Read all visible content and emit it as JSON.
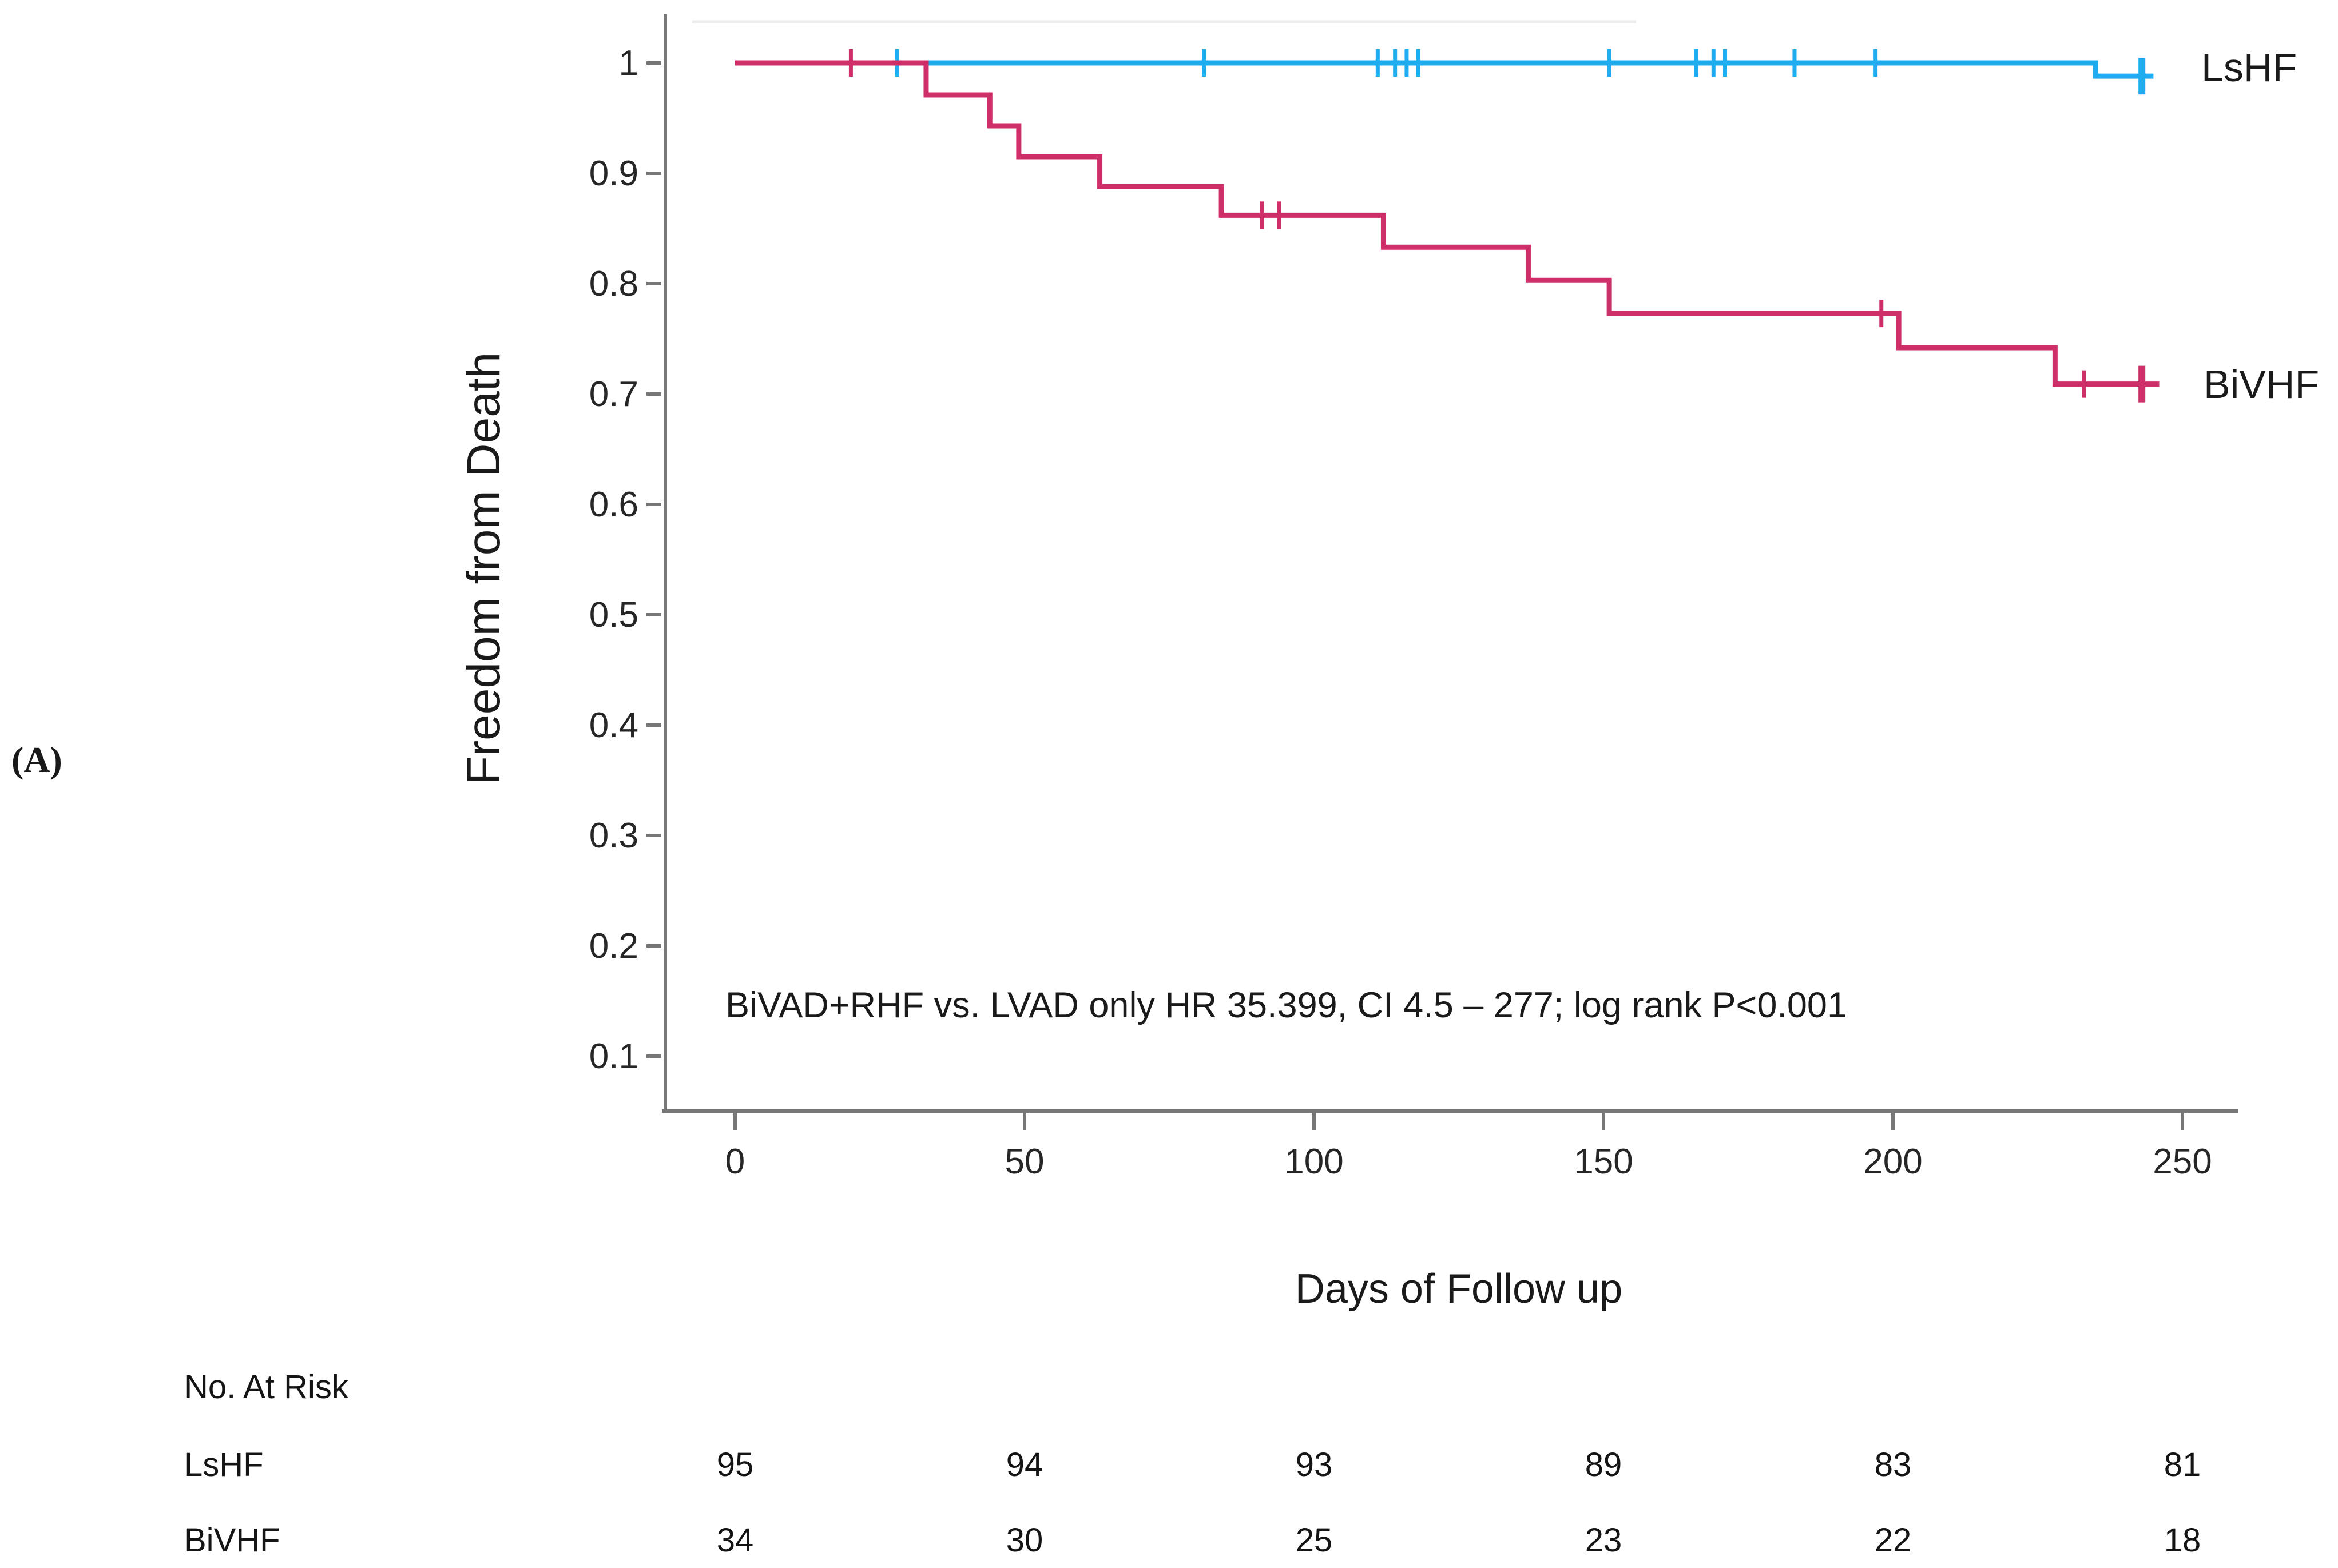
{
  "panel_label": "(A)",
  "colors": {
    "lshf_blue": "#1fadf0",
    "bivhf_pink": "#cf2f69",
    "axis_gray": "#777777",
    "text_dark": "#1a1a1a"
  },
  "chart_data": {
    "type": "line",
    "subtype": "kaplan-meier-step",
    "title": "",
    "xlabel": "Days of Follow up",
    "ylabel": "Freedom from Death",
    "annotation": "BiVAD+RHF vs. LVAD only HR 35.399, CI 4.5 – 277; log rank P<0.001",
    "xlim": [
      0,
      250
    ],
    "ylim_drawn": [
      0.05,
      1.05
    ],
    "xticks": [
      "0",
      "50",
      "100",
      "150",
      "200",
      "250"
    ],
    "yticks": [
      "1",
      "0.9",
      "0.8",
      "0.7",
      "0.6",
      "0.5",
      "0.4",
      "0.3",
      "0.2",
      "0.1"
    ],
    "grid": false,
    "legend_position": "right-of-curve-ends",
    "series": [
      {
        "name": "LsHF",
        "color": "#1fadf0",
        "steps": [
          [
            0,
            1.0
          ],
          [
            235,
            0.988
          ]
        ],
        "end_day": 245,
        "censor_marks": [
          [
            28,
            1.0
          ],
          [
            81,
            1.0
          ],
          [
            111,
            1.0
          ],
          [
            114,
            1.0
          ],
          [
            116,
            1.0
          ],
          [
            118,
            1.0
          ],
          [
            151,
            1.0
          ],
          [
            166,
            1.0
          ],
          [
            169,
            1.0
          ],
          [
            171,
            1.0
          ],
          [
            183,
            1.0
          ],
          [
            197,
            1.0
          ]
        ],
        "final_censor": [
          243,
          0.988
        ]
      },
      {
        "name": "BiVHF",
        "color": "#cf2f69",
        "steps": [
          [
            0,
            1.0
          ],
          [
            33,
            0.971
          ],
          [
            44,
            0.943
          ],
          [
            49,
            0.915
          ],
          [
            63,
            0.888
          ],
          [
            84,
            0.862
          ],
          [
            112,
            0.833
          ],
          [
            137,
            0.803
          ],
          [
            151,
            0.773
          ],
          [
            201,
            0.742
          ],
          [
            228,
            0.709
          ]
        ],
        "end_day": 246,
        "censor_marks": [
          [
            20,
            1.0
          ],
          [
            91,
            0.862
          ],
          [
            94,
            0.862
          ],
          [
            198,
            0.773
          ],
          [
            233,
            0.709
          ]
        ],
        "final_censor": [
          243,
          0.709
        ]
      }
    ]
  },
  "risk_table": {
    "header": "No. At Risk",
    "timepoints": [
      0,
      50,
      100,
      150,
      200,
      250
    ],
    "rows": [
      {
        "label": "LsHF",
        "values": [
          "95",
          "94",
          "93",
          "89",
          "83",
          "81"
        ]
      },
      {
        "label": "BiVHF",
        "values": [
          "34",
          "30",
          "25",
          "23",
          "22",
          "18"
        ]
      }
    ]
  }
}
